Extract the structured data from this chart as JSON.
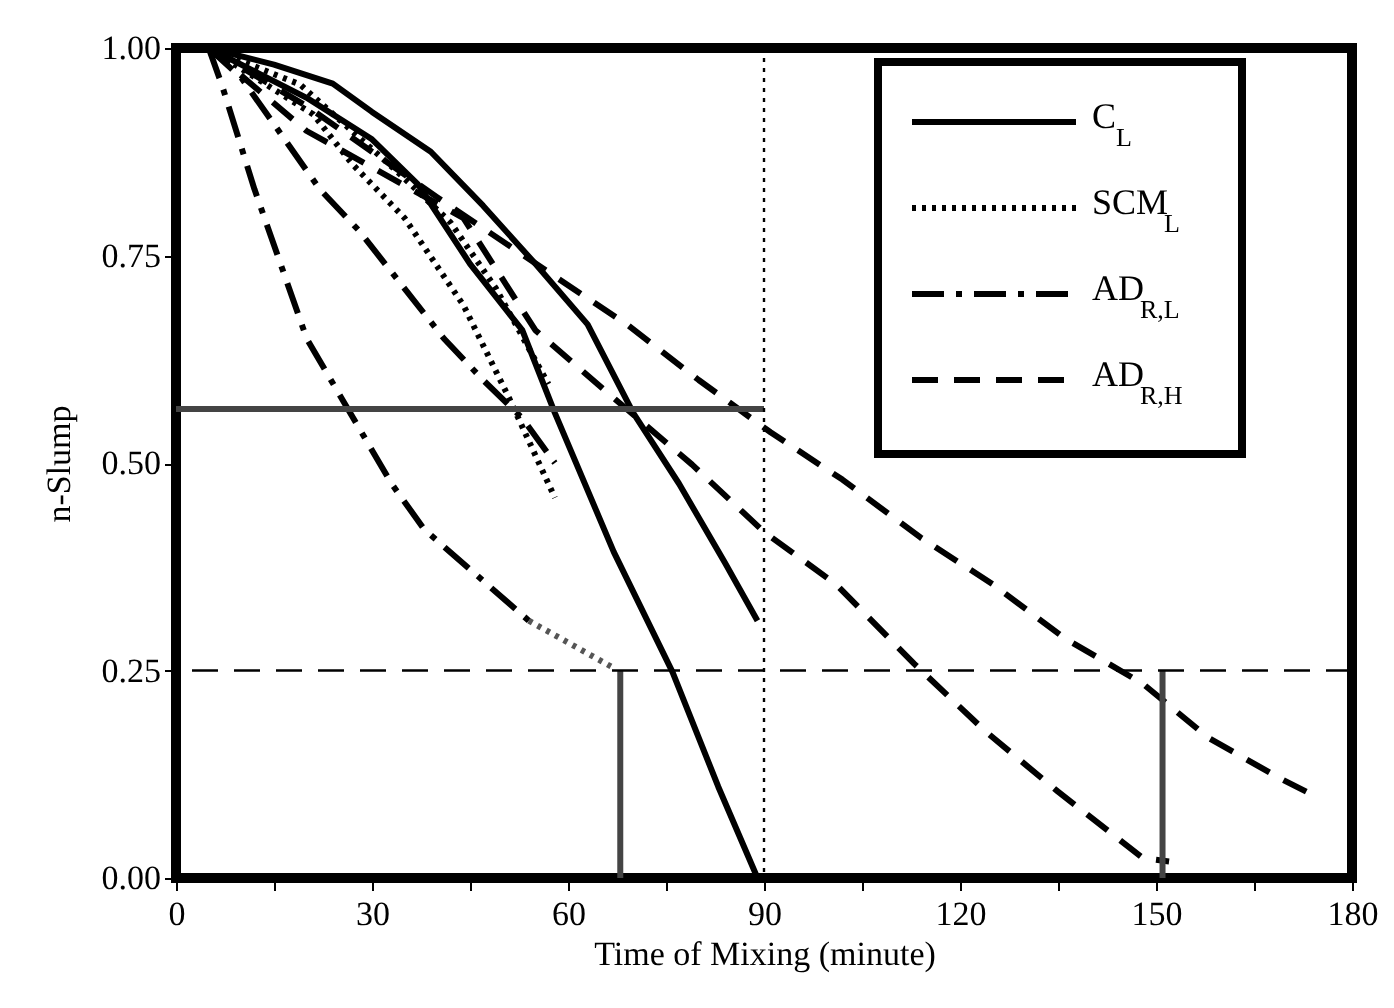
{
  "chart_data": {
    "type": "line",
    "xlabel": "Time of Mixing (minute)",
    "ylabel": "n-Slump",
    "xlim": [
      0,
      180
    ],
    "ylim": [
      0,
      1
    ],
    "xticks": [
      0,
      {
        "value": 15,
        "label": null
      },
      30,
      {
        "value": 45,
        "label": null
      },
      60,
      {
        "value": 75,
        "label": null
      },
      90,
      {
        "value": 105,
        "label": null
      },
      120,
      {
        "value": 135,
        "label": null
      },
      150,
      {
        "value": 165,
        "label": null
      },
      180
    ],
    "yticks": [
      {
        "value": 0,
        "label": "0.00"
      },
      {
        "value": 0.25,
        "label": "0.25"
      },
      {
        "value": 0.5,
        "label": "0.50"
      },
      {
        "value": 0.75,
        "label": "0.75"
      },
      {
        "value": 1,
        "label": "1.00"
      }
    ],
    "grid": false,
    "legend": "top right",
    "series": [
      {
        "name": "C$_{L}$",
        "color": "#000000",
        "line_style": "solid",
        "x": [
          5,
          15,
          24,
          30,
          39,
          47,
          55,
          63,
          70,
          77,
          84,
          89
        ],
        "values": [
          1,
          0.98,
          0.957,
          0.923,
          0.875,
          0.81,
          0.74,
          0.667,
          0.56,
          0.475,
          0.38,
          0.31
        ]
      },
      {
        "color": "#000000",
        "line_style": "solid",
        "x": [
          5,
          20,
          30,
          37,
          45,
          53,
          58,
          67,
          76,
          83,
          89
        ],
        "values": [
          1,
          0.94,
          0.89,
          0.836,
          0.74,
          0.66,
          0.56,
          0.393,
          0.248,
          0.11,
          0
        ]
      },
      {
        "name": "SCM$_{L}$",
        "color": "#000000",
        "line_style": "dotted",
        "x": [
          5,
          21,
          27,
          35,
          44,
          51,
          58
        ],
        "values": [
          1,
          0.92,
          0.86,
          0.795,
          0.69,
          0.578,
          0.458
        ]
      },
      {
        "color": "#000000",
        "line_style": "dotted",
        "x": [
          5,
          19,
          34,
          42,
          49,
          57
        ],
        "values": [
          1,
          0.956,
          0.85,
          0.79,
          0.71,
          0.595
        ]
      },
      {
        "name": "AD$_{R,L}$",
        "color": "#000000",
        "line_style": "dashdot",
        "x": [
          5,
          7,
          12,
          20,
          33,
          38,
          54
        ],
        "values": [
          1,
          0.956,
          0.83,
          0.65,
          0.475,
          0.42,
          0.31
        ]
      },
      {
        "color": "#555555",
        "line_style": "dotted",
        "x": [
          54,
          67
        ],
        "values": [
          0.31,
          0.253
        ]
      },
      {
        "color": "#000000",
        "line_style": "dashdot",
        "x": [
          5,
          10,
          22,
          28,
          41,
          47,
          53,
          58
        ],
        "values": [
          1,
          0.964,
          0.83,
          0.78,
          0.65,
          0.6,
          0.554,
          0.5
        ]
      },
      {
        "name": "AD$_{R,H}$",
        "color": "#000000",
        "line_style": "dashed",
        "x": [
          5,
          20,
          40,
          57,
          69,
          80,
          91,
          102,
          114,
          125,
          136,
          148,
          158,
          169,
          173
        ],
        "values": [
          1,
          0.93,
          0.82,
          0.73,
          0.667,
          0.6,
          0.537,
          0.48,
          0.41,
          0.354,
          0.289,
          0.234,
          0.169,
          0.12,
          0.104
        ]
      },
      {
        "color": "#000000",
        "line_style": "dashed",
        "x": [
          5,
          20,
          44,
          55,
          66,
          79,
          90,
          101,
          113,
          124,
          135,
          148,
          152
        ],
        "values": [
          1,
          0.9,
          0.795,
          0.66,
          0.585,
          0.498,
          0.417,
          0.354,
          0.258,
          0.176,
          0.104,
          0.024,
          0.02
        ]
      },
      {
        "color": "#444444",
        "line_style": "solid",
        "x": [
          0,
          90
        ],
        "values": [
          0.565,
          0.565
        ]
      },
      {
        "color": "#444444",
        "line_style": "solid",
        "x": [
          68,
          68
        ],
        "values": [
          0,
          0.25
        ]
      },
      {
        "color": "#444444",
        "line_style": "solid",
        "x": [
          151,
          151
        ],
        "values": [
          0,
          0.25
        ]
      }
    ],
    "ref_lines": [
      {
        "axis": "x",
        "value": 90,
        "line_style": "dotted",
        "color": "#000000"
      },
      {
        "axis": "y",
        "value": 0.25,
        "line_style": "dashed",
        "color": "#000000"
      }
    ]
  }
}
